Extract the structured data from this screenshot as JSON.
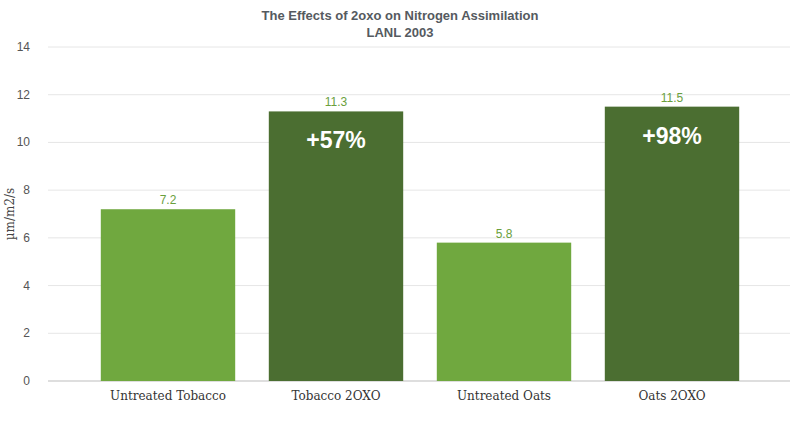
{
  "chart_data": {
    "type": "bar",
    "title": "The Effects of 2oxo on Nitrogen Assimilation",
    "subtitle": "LANL 2003",
    "y_label": "µm/m2/s",
    "categories": [
      "Untreated Tobacco",
      "Tobacco 2OXO",
      "Untreated Oats",
      "Oats 2OXO"
    ],
    "values": [
      7.2,
      11.3,
      5.8,
      11.5
    ],
    "colors": [
      "#70a83f",
      "#4b6e31",
      "#70a83f",
      "#4b6e31"
    ],
    "ylim": [
      0,
      14
    ],
    "yticks": [
      0,
      2,
      4,
      6,
      8,
      10,
      12,
      14
    ],
    "grid": true,
    "data_labels": true,
    "annotations": [
      {
        "text": "+57%",
        "category": "Tobacco 2OXO"
      },
      {
        "text": "+98%",
        "category": "Oats 2OXO"
      }
    ]
  }
}
